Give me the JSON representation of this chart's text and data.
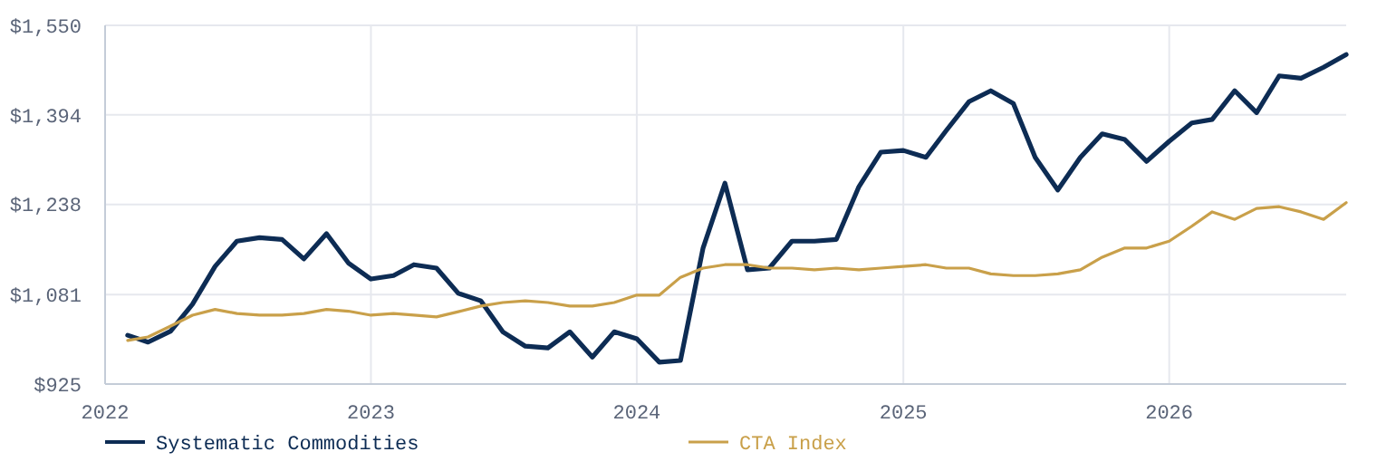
{
  "chart_data": {
    "type": "line",
    "x": [
      "2022-02",
      "2022-03",
      "2022-04",
      "2022-05",
      "2022-06",
      "2022-07",
      "2022-08",
      "2022-09",
      "2022-10",
      "2022-11",
      "2022-12",
      "2023-01",
      "2023-02",
      "2023-03",
      "2023-04",
      "2023-05",
      "2023-06",
      "2023-07",
      "2023-08",
      "2023-09",
      "2023-10",
      "2023-11",
      "2023-12",
      "2024-01",
      "2024-02",
      "2024-03",
      "2024-04",
      "2024-05",
      "2024-06",
      "2024-07",
      "2024-08",
      "2024-09",
      "2024-10",
      "2024-11",
      "2024-12",
      "2025-01",
      "2025-02",
      "2025-03",
      "2025-04",
      "2025-05",
      "2025-06",
      "2025-07",
      "2025-08",
      "2025-09",
      "2025-10",
      "2025-11",
      "2025-12",
      "2026-01",
      "2026-02",
      "2026-03",
      "2026-04",
      "2026-05",
      "2026-06",
      "2026-07",
      "2026-08",
      "2026-09"
    ],
    "series": [
      {
        "name": "Systematic Commodities",
        "color": "#0d2c54",
        "values": [
          1010,
          998,
          1017,
          1064,
          1130,
          1174,
          1180,
          1177,
          1143,
          1187,
          1136,
          1108,
          1114,
          1133,
          1127,
          1083,
          1070,
          1016,
          991,
          988,
          1016,
          972,
          1016,
          1004,
          963,
          966,
          1162,
          1275,
          1124,
          1127,
          1174,
          1174,
          1177,
          1269,
          1329,
          1332,
          1320,
          1367,
          1417,
          1436,
          1414,
          1320,
          1263,
          1320,
          1361,
          1351,
          1313,
          1348,
          1380,
          1386,
          1436,
          1398,
          1462,
          1458,
          1477,
          1499
        ]
      },
      {
        "name": "CTA Index",
        "color": "#c9a04a",
        "values": [
          1001,
          1007,
          1026,
          1045,
          1055,
          1048,
          1045,
          1045,
          1048,
          1055,
          1052,
          1045,
          1048,
          1045,
          1042,
          1051,
          1061,
          1067,
          1070,
          1067,
          1061,
          1061,
          1067,
          1080,
          1080,
          1111,
          1127,
          1133,
          1133,
          1127,
          1127,
          1124,
          1127,
          1124,
          1127,
          1130,
          1133,
          1127,
          1127,
          1117,
          1114,
          1114,
          1117,
          1124,
          1146,
          1162,
          1162,
          1174,
          1200,
          1225,
          1212,
          1231,
          1234,
          1225,
          1212,
          1241
        ]
      }
    ],
    "xlim": [
      "2022-01",
      "2026-09"
    ],
    "xticks": [
      "2022",
      "2023",
      "2024",
      "2025",
      "2026"
    ],
    "ylim": [
      925,
      1550
    ],
    "yticks": [
      {
        "value": 925,
        "label": "$925"
      },
      {
        "value": 1081,
        "label": "$1,081"
      },
      {
        "value": 1238,
        "label": "$1,238"
      },
      {
        "value": 1394,
        "label": "$1,394"
      },
      {
        "value": 1550,
        "label": "$1,550"
      }
    ],
    "grid": true,
    "legend": "bottom",
    "marker": "none",
    "line_style": "solid"
  }
}
